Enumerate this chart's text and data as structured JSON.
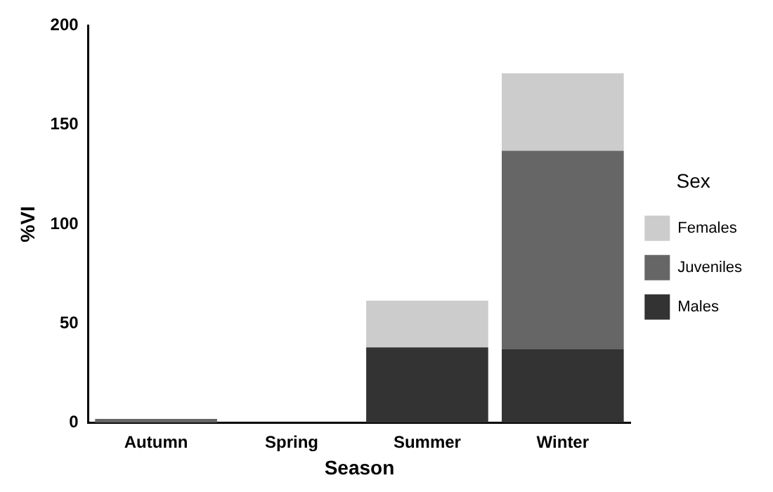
{
  "chart_data": {
    "type": "bar",
    "stacked": true,
    "xlabel": "Season",
    "ylabel": "%VI",
    "legend_title": "Sex",
    "legend": "right",
    "grid": false,
    "categories": [
      "Autumn",
      "Spring",
      "Summer",
      "Winter"
    ],
    "series": [
      {
        "name": "Males",
        "color": "#333333",
        "values": [
          0,
          0,
          38,
          37
        ]
      },
      {
        "name": "Juveniles",
        "color": "#666666",
        "values": [
          2,
          0,
          0,
          100
        ]
      },
      {
        "name": "Females",
        "color": "#cccccc",
        "values": [
          0,
          0,
          23.5,
          39
        ]
      }
    ],
    "ylim": [
      0,
      200
    ],
    "yticks": [
      0,
      50,
      100,
      150,
      200
    ]
  }
}
